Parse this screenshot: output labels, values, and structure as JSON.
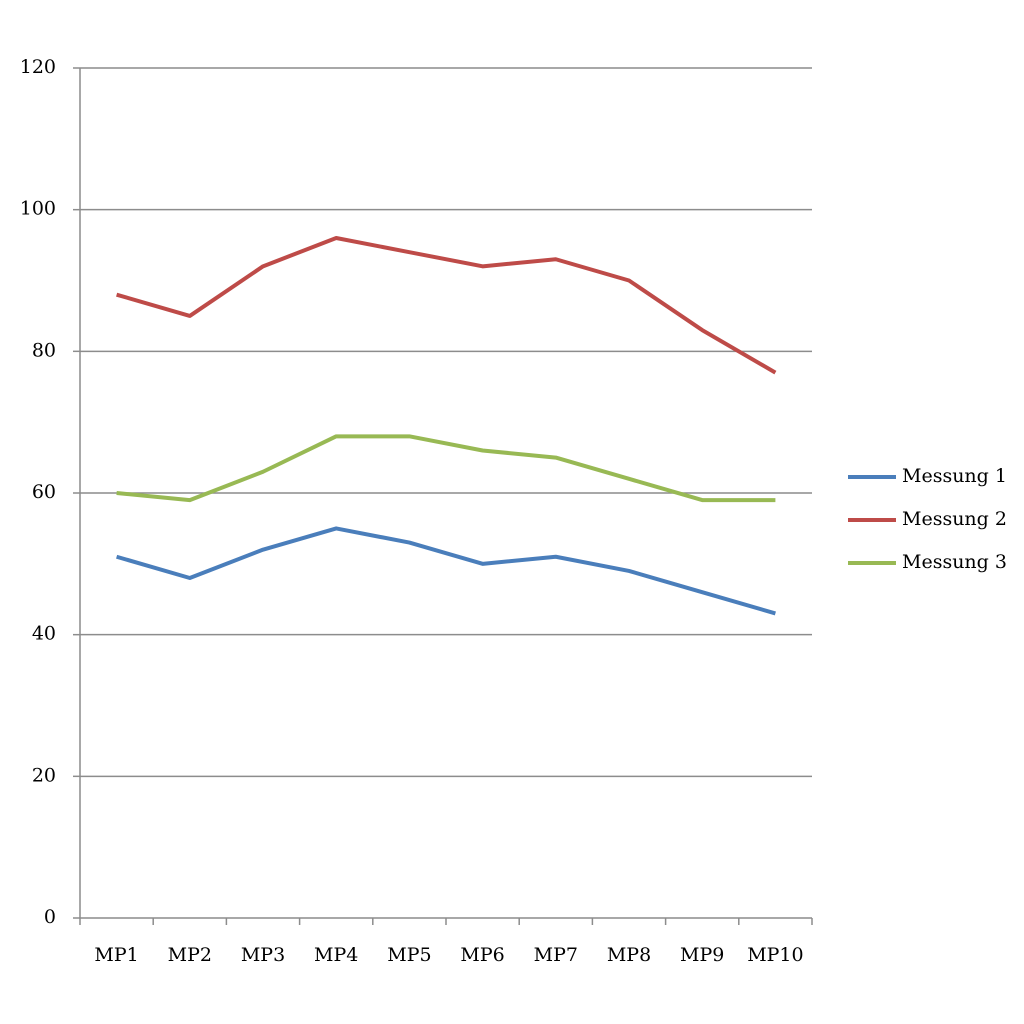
{
  "chart_data": {
    "type": "line",
    "categories": [
      "MP1",
      "MP2",
      "MP3",
      "MP4",
      "MP5",
      "MP6",
      "MP7",
      "MP8",
      "MP9",
      "MP10"
    ],
    "series": [
      {
        "name": "Messung 1",
        "color": "#4a7ebb",
        "values": [
          51,
          48,
          52,
          55,
          53,
          50,
          51,
          49,
          46,
          43
        ]
      },
      {
        "name": "Messung 2",
        "color": "#be4b48",
        "values": [
          88,
          85,
          92,
          96,
          94,
          92,
          93,
          90,
          83,
          77
        ]
      },
      {
        "name": "Messung 3",
        "color": "#98b954",
        "values": [
          60,
          59,
          63,
          68,
          68,
          66,
          65,
          62,
          59,
          59
        ]
      }
    ],
    "ylim": [
      0,
      120
    ],
    "yticks": [
      0,
      20,
      40,
      60,
      80,
      100,
      120
    ],
    "grid": true,
    "legend": "right"
  }
}
